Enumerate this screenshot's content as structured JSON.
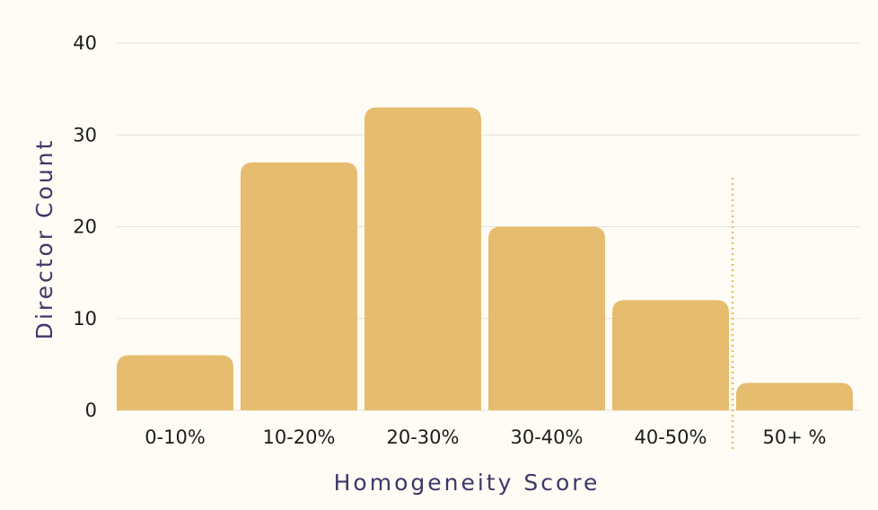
{
  "chart_data": {
    "type": "bar",
    "categories": [
      "0-10%",
      "10-20%",
      "20-30%",
      "30-40%",
      "40-50%",
      "50+ %"
    ],
    "values": [
      6,
      27,
      33,
      20,
      12,
      3
    ],
    "xlabel": "Homogeneity Score",
    "ylabel": "Director Count",
    "ylim": [
      0,
      40
    ],
    "yticks": [
      0,
      10,
      20,
      30,
      40
    ],
    "grid": true,
    "separator_after_category": "40-50%",
    "colors": {
      "bar": "#e6bc6e",
      "grid": "#e4e2da",
      "separator": "#e6bc6e",
      "text": "#1c1c1c",
      "axis_title": "#3e3868",
      "background": "#fefcf4"
    }
  }
}
